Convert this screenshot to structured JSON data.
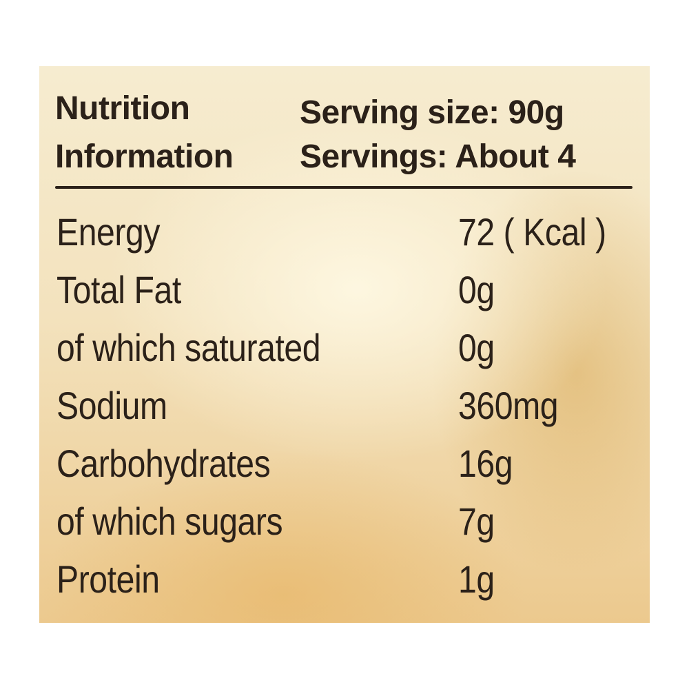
{
  "panel": {
    "title_line1": "Nutrition",
    "title_line2": "Information",
    "serving_size": "Serving  size:  90g",
    "servings": "Servings: About 4"
  },
  "rows": [
    {
      "name": "Energy",
      "value": "72 ( Kcal )"
    },
    {
      "name": "Total Fat",
      "value": "0g"
    },
    {
      "name": "of which saturated",
      "value": "0g"
    },
    {
      "name": "Sodium",
      "value": "360mg"
    },
    {
      "name": "Carbohydrates",
      "value": "16g"
    },
    {
      "name": "of which sugars",
      "value": "7g"
    },
    {
      "name": "Protein",
      "value": "1g"
    }
  ],
  "colors": {
    "text": "#2b2119",
    "label_background": "#f3e2bd",
    "page_background": "#ffffff"
  }
}
